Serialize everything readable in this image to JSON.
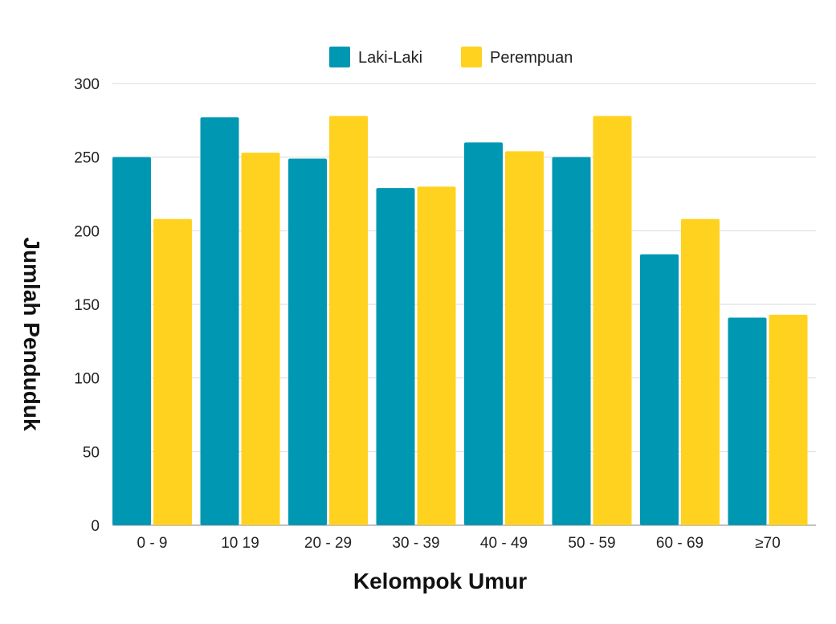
{
  "chart_data": {
    "type": "bar",
    "title": "",
    "xlabel": "Kelompok Umur",
    "ylabel": "Jumlah Penduduk",
    "categories": [
      "0 - 9",
      "10 19",
      "20 - 29",
      "30 - 39",
      "40 - 49",
      "50 - 59",
      "60 - 69",
      "≥70"
    ],
    "series": [
      {
        "name": "Laki-Laki",
        "color": "#0097b2",
        "values": [
          250,
          277,
          249,
          229,
          260,
          250,
          184,
          141
        ]
      },
      {
        "name": "Perempuan",
        "color": "#ffd21f",
        "values": [
          208,
          253,
          278,
          230,
          254,
          278,
          208,
          143
        ]
      }
    ],
    "ylim": [
      0,
      300
    ],
    "yticks": [
      0,
      50,
      100,
      150,
      200,
      250,
      300
    ],
    "grid": true,
    "legend_position": "top-center"
  }
}
